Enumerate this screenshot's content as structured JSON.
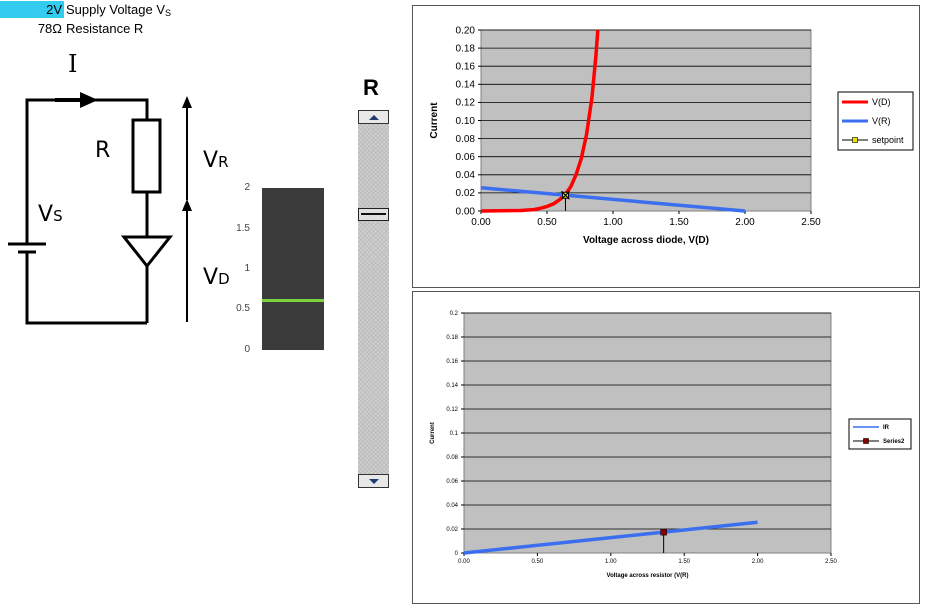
{
  "params": [
    {
      "value": "2V",
      "label": "Supply Voltage V",
      "label_sub": "S",
      "highlight": true
    },
    {
      "value": "78Ω",
      "label": "Resistance R",
      "label_sub": "",
      "highlight": false
    }
  ],
  "circuit": {
    "current_label": "I",
    "resistor_label": "R",
    "supply_label": "V",
    "supply_sub": "S",
    "vr_label": "V",
    "vr_sub": "R",
    "vd_label": "V",
    "vd_sub": "D"
  },
  "scale": {
    "ticks": [
      "2",
      "1.5",
      "1",
      "0.5",
      "0"
    ],
    "indicator_value": 0.62
  },
  "slider": {
    "title": "R",
    "position_fraction": 0.25,
    "up_icon": "scroll-up-arrow-icon",
    "down_icon": "scroll-down-arrow-icon"
  },
  "chart_data": [
    {
      "type": "line",
      "xlabel": "Voltage across diode, V(D)",
      "ylabel": "Current",
      "xlim": [
        0,
        2.5
      ],
      "ylim": [
        0,
        0.2
      ],
      "x_ticks": [
        "0.00",
        "0.50",
        "1.00",
        "1.50",
        "2.00",
        "2.50"
      ],
      "y_ticks": [
        "0.00",
        "0.02",
        "0.04",
        "0.06",
        "0.08",
        "0.10",
        "0.12",
        "0.14",
        "0.16",
        "0.18",
        "0.20"
      ],
      "grid": true,
      "legend_position": "right",
      "series": [
        {
          "name": "V(D)",
          "color": "#ff0000",
          "x": [
            0,
            0.3,
            0.4,
            0.45,
            0.5,
            0.55,
            0.6,
            0.64,
            0.68,
            0.72,
            0.76,
            0.8,
            0.84,
            0.87,
            0.885
          ],
          "y": [
            0,
            0.0005,
            0.0015,
            0.003,
            0.005,
            0.008,
            0.013,
            0.0185,
            0.027,
            0.04,
            0.058,
            0.085,
            0.125,
            0.17,
            0.2
          ]
        },
        {
          "name": "V(R)",
          "color": "#3c6ff0",
          "x": [
            0,
            2.0
          ],
          "y": [
            0.0256,
            0
          ]
        },
        {
          "name": "setpoint",
          "color": "#000000",
          "x": [
            0.64
          ],
          "y": [
            0.0174
          ]
        }
      ]
    },
    {
      "type": "line",
      "xlabel": "Voltage across resistor (V(R)",
      "ylabel": "Current",
      "xlim": [
        0,
        2.5
      ],
      "ylim": [
        0,
        0.2
      ],
      "x_ticks": [
        "0.00",
        "0.50",
        "1.00",
        "1.50",
        "2.00",
        "2.50"
      ],
      "y_ticks": [
        "0",
        "0.02",
        "0.04",
        "0.06",
        "0.08",
        "0.1",
        "0.12",
        "0.14",
        "0.16",
        "0.18",
        "0.2"
      ],
      "grid": true,
      "legend_position": "right",
      "series": [
        {
          "name": "IR",
          "color": "#3c6ff0",
          "x": [
            0,
            2.0
          ],
          "y": [
            0,
            0.0256
          ]
        },
        {
          "name": "Series2",
          "color": "#8b0000",
          "x": [
            1.36
          ],
          "y": [
            0.0174
          ]
        }
      ]
    }
  ]
}
